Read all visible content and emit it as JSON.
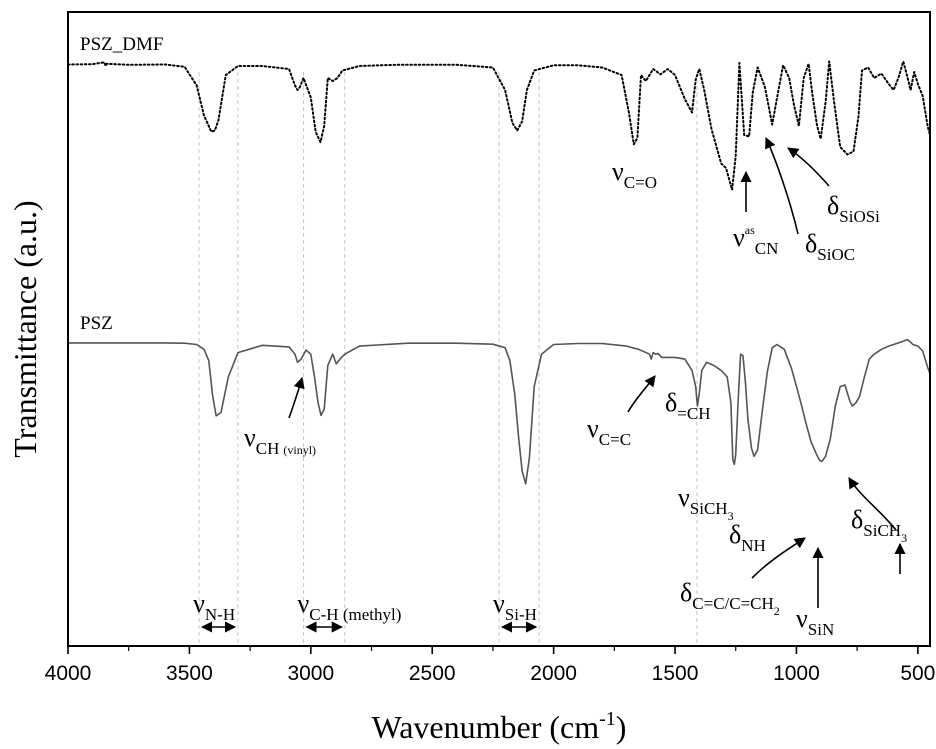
{
  "chart_data": {
    "type": "line",
    "xlabel": "Wavenumber (cm-1)",
    "xlabel_parts": [
      "Wavenumber (cm",
      "-1",
      ")"
    ],
    "ylabel": "Transmittance (a.u.)",
    "x_reversed": true,
    "xlim": [
      4000,
      450
    ],
    "x_ticks": [
      4000,
      3500,
      3000,
      2500,
      2000,
      1500,
      1000,
      500
    ],
    "x_tick_labels": [
      "4000",
      "3500",
      "3000",
      "2500",
      "2000",
      "1500",
      "1000",
      "500"
    ],
    "grid": false,
    "series": [
      {
        "name": "PSZ_DMF",
        "style": "dotted",
        "color": "#000000",
        "x": [
          4000,
          3900,
          3850,
          3845,
          3840,
          3750,
          3600,
          3520,
          3470,
          3440,
          3410,
          3395,
          3380,
          3350,
          3300,
          3200,
          3090,
          3065,
          3055,
          3045,
          3030,
          3000,
          2980,
          2960,
          2945,
          2930,
          2910,
          2890,
          2870,
          2800,
          2650,
          2400,
          2250,
          2200,
          2170,
          2150,
          2130,
          2110,
          2080,
          2000,
          1900,
          1800,
          1720,
          1690,
          1670,
          1655,
          1640,
          1620,
          1590,
          1560,
          1530,
          1500,
          1460,
          1430,
          1415,
          1400,
          1380,
          1350,
          1310,
          1290,
          1265,
          1250,
          1235,
          1215,
          1195,
          1180,
          1160,
          1130,
          1100,
          1075,
          1055,
          1030,
          1010,
          990,
          970,
          950,
          935,
          915,
          900,
          880,
          865,
          845,
          820,
          790,
          765,
          745,
          730,
          705,
          680,
          650,
          620,
          600,
          580,
          560,
          545,
          530,
          515,
          500,
          480,
          460,
          450
        ],
        "y": [
          0.97,
          0.972,
          0.985,
          0.96,
          0.975,
          0.968,
          0.97,
          0.955,
          0.83,
          0.63,
          0.522,
          0.53,
          0.6,
          0.9,
          0.96,
          0.96,
          0.94,
          0.83,
          0.8,
          0.82,
          0.88,
          0.75,
          0.52,
          0.452,
          0.56,
          0.88,
          0.86,
          0.88,
          0.93,
          0.96,
          0.968,
          0.968,
          0.95,
          0.8,
          0.58,
          0.53,
          0.59,
          0.8,
          0.93,
          0.965,
          0.965,
          0.95,
          0.9,
          0.65,
          0.438,
          0.48,
          0.9,
          0.86,
          0.94,
          0.905,
          0.94,
          0.9,
          0.74,
          0.65,
          0.87,
          0.94,
          0.8,
          0.54,
          0.31,
          0.28,
          0.135,
          0.36,
          0.98,
          0.5,
          0.49,
          0.78,
          0.95,
          0.82,
          0.57,
          0.79,
          0.965,
          0.88,
          0.7,
          0.56,
          0.88,
          0.975,
          0.78,
          0.56,
          0.475,
          0.72,
          0.99,
          0.72,
          0.42,
          0.37,
          0.39,
          0.62,
          0.93,
          0.95,
          0.88,
          0.91,
          0.84,
          0.8,
          0.88,
          0.99,
          0.9,
          0.8,
          0.92,
          0.84,
          0.76,
          0.56,
          0.5
        ]
      },
      {
        "name": "PSZ",
        "style": "solid",
        "color": "#555555",
        "x": [
          4000,
          3800,
          3600,
          3520,
          3470,
          3440,
          3420,
          3405,
          3390,
          3370,
          3340,
          3300,
          3200,
          3090,
          3065,
          3055,
          3040,
          3020,
          3000,
          2985,
          2970,
          2958,
          2945,
          2930,
          2910,
          2895,
          2880,
          2860,
          2800,
          2600,
          2400,
          2250,
          2200,
          2180,
          2160,
          2145,
          2130,
          2115,
          2100,
          2080,
          2050,
          2000,
          1900,
          1800,
          1700,
          1650,
          1605,
          1598,
          1590,
          1580,
          1570,
          1555,
          1540,
          1500,
          1460,
          1430,
          1415,
          1408,
          1400,
          1390,
          1370,
          1340,
          1310,
          1285,
          1270,
          1262,
          1256,
          1250,
          1240,
          1230,
          1220,
          1210,
          1200,
          1185,
          1175,
          1160,
          1140,
          1120,
          1100,
          1080,
          1050,
          1020,
          1000,
          980,
          960,
          940,
          920,
          905,
          895,
          880,
          860,
          840,
          820,
          800,
          790,
          780,
          770,
          755,
          740,
          720,
          700,
          680,
          650,
          620,
          600,
          580,
          560,
          545,
          535,
          520,
          500,
          480,
          460,
          450
        ],
        "y": [
          0.97,
          0.97,
          0.97,
          0.968,
          0.96,
          0.93,
          0.86,
          0.65,
          0.52,
          0.54,
          0.76,
          0.91,
          0.955,
          0.945,
          0.9,
          0.85,
          0.87,
          0.925,
          0.9,
          0.76,
          0.6,
          0.523,
          0.56,
          0.83,
          0.9,
          0.84,
          0.87,
          0.9,
          0.95,
          0.968,
          0.968,
          0.962,
          0.94,
          0.86,
          0.65,
          0.4,
          0.18,
          0.1,
          0.26,
          0.7,
          0.9,
          0.96,
          0.966,
          0.966,
          0.95,
          0.93,
          0.9,
          0.87,
          0.91,
          0.9,
          0.905,
          0.88,
          0.88,
          0.88,
          0.87,
          0.8,
          0.7,
          0.58,
          0.66,
          0.8,
          0.85,
          0.83,
          0.8,
          0.76,
          0.6,
          0.25,
          0.22,
          0.28,
          0.62,
          0.9,
          0.89,
          0.72,
          0.5,
          0.32,
          0.27,
          0.31,
          0.56,
          0.79,
          0.94,
          0.96,
          0.93,
          0.81,
          0.7,
          0.59,
          0.47,
          0.36,
          0.29,
          0.245,
          0.238,
          0.27,
          0.38,
          0.58,
          0.7,
          0.71,
          0.66,
          0.61,
          0.58,
          0.6,
          0.64,
          0.76,
          0.87,
          0.9,
          0.93,
          0.95,
          0.96,
          0.97,
          0.98,
          0.99,
          0.98,
          0.96,
          0.95,
          0.92,
          0.82,
          0.78
        ]
      }
    ],
    "series_labels": [
      {
        "series": "PSZ_DMF",
        "text": "PSZ_DMF"
      },
      {
        "series": "PSZ",
        "text": "PSZ"
      }
    ],
    "reference_lines_x": [
      3460,
      3300,
      3030,
      2860,
      2225,
      2060,
      1410
    ],
    "ranges": [
      {
        "from": 3460,
        "to": 3300,
        "main": "ν",
        "sub": "N-H"
      },
      {
        "from": 3030,
        "to": 2860,
        "main": "ν",
        "sub": "C-H (methyl)"
      },
      {
        "from": 2225,
        "to": 2060,
        "main": "ν",
        "sub": "Si-H"
      }
    ],
    "annotations": [
      {
        "series": "PSZ_DMF",
        "main": "ν",
        "sub": "C=O",
        "sub_base": "",
        "sub_tail": ""
      },
      {
        "series": "PSZ_DMF",
        "main": "ν",
        "sup": "as",
        "sub": "CN",
        "sub_base": "",
        "sub_tail": ""
      },
      {
        "series": "PSZ_DMF",
        "main": "δ",
        "sub": "SiOC",
        "sub_base": "",
        "sub_tail": ""
      },
      {
        "series": "PSZ_DMF",
        "main": "δ",
        "sub": "SiOSi",
        "sub_base": "",
        "sub_tail": ""
      },
      {
        "series": "PSZ",
        "main": "ν",
        "sub": "CH",
        "sub_small": "(vinyl)",
        "sub_base": "",
        "sub_tail": ""
      },
      {
        "series": "PSZ",
        "main": "ν",
        "sub": "C=C",
        "sub_base": "",
        "sub_tail": ""
      },
      {
        "series": "PSZ",
        "main": "δ",
        "sub": "=CH",
        "sub_base": "",
        "sub_tail": ""
      },
      {
        "series": "PSZ",
        "main": "ν",
        "sub": "SiCH",
        "sub2": "3",
        "sub_base": "",
        "sub_tail": ""
      },
      {
        "series": "PSZ",
        "main": "δ",
        "sub": "NH",
        "sub_base": "",
        "sub_tail": ""
      },
      {
        "series": "PSZ",
        "main": "δ",
        "sub": "C=C/C=CH",
        "sub2": "2",
        "sub_base": "",
        "sub_tail": ""
      },
      {
        "series": "PSZ",
        "main": "ν",
        "sub": "SiN",
        "sub_base": "",
        "sub_tail": ""
      },
      {
        "series": "PSZ",
        "main": "δ",
        "sub": "SiCH",
        "sub2": "3",
        "sub_base": "",
        "sub_tail": ""
      }
    ]
  }
}
